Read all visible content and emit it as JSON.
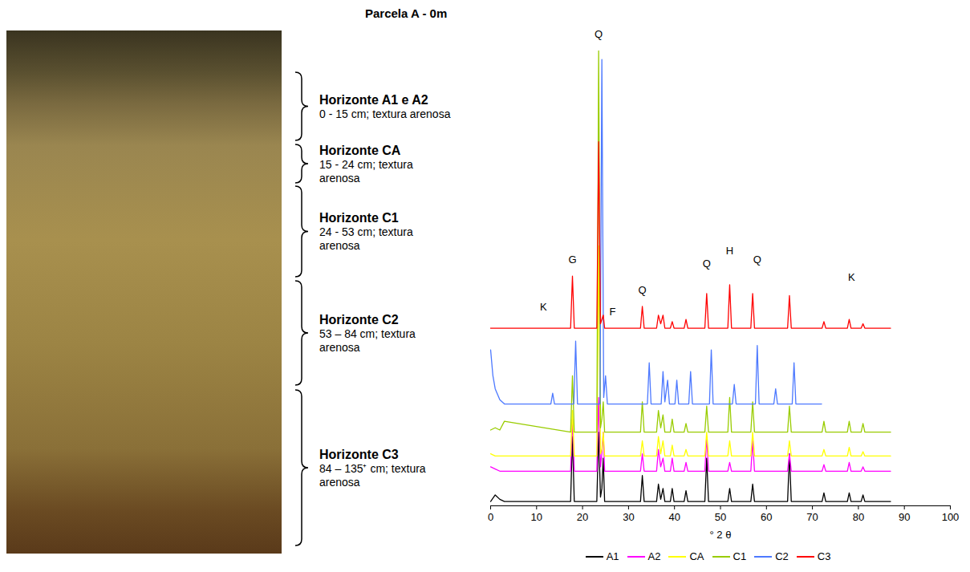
{
  "title": "Parcela A - 0m",
  "horizons": [
    {
      "name": "Horizonte A1 e A2",
      "depth": "0 - 15 cm; textura arenosa"
    },
    {
      "name": "Horizonte CA",
      "depth": "15 - 24 cm; textura arenosa"
    },
    {
      "name": "Horizonte C1",
      "depth": "24 - 53 cm; textura arenosa"
    },
    {
      "name": "Horizonte C2",
      "depth": "53 – 84 cm; textura arenosa"
    },
    {
      "name": "Horizonte C3",
      "depth": "84 – 135⁺ cm; textura arenosa"
    }
  ],
  "chart_data": {
    "type": "line",
    "x_label": "° 2 θ",
    "xlim": [
      0,
      100
    ],
    "xticks": [
      0,
      10,
      20,
      30,
      40,
      50,
      60,
      70,
      80,
      90,
      100
    ],
    "ylim": [
      0,
      112
    ],
    "tick_labels": "x",
    "legend": "bottom",
    "x": [
      0,
      1,
      2,
      3,
      17.4,
      17.8,
      18.2,
      23.1,
      23.5,
      23.9,
      24.2,
      24.5,
      24.8,
      32.6,
      33,
      33.4,
      36.1,
      36.5,
      37,
      37.5,
      37.9,
      39.1,
      39.5,
      39.9,
      42.1,
      42.5,
      42.9,
      46.6,
      47,
      47.4,
      51.6,
      52,
      52.4,
      56.6,
      57,
      57.4,
      64.6,
      65,
      65.4,
      72.1,
      72.5,
      72.9,
      77.6,
      78,
      78.4,
      80.6,
      81,
      81.4,
      87
    ],
    "series": [
      {
        "name": "A1",
        "color": "#000000",
        "values": [
          1,
          2.5,
          1.5,
          1,
          1,
          16,
          1,
          1,
          17,
          2,
          4,
          11,
          1,
          1,
          7,
          1,
          1,
          5,
          1.5,
          4,
          1,
          1,
          4,
          1,
          1,
          3.5,
          1,
          1,
          11,
          1,
          1,
          4,
          1,
          1,
          5,
          1,
          1,
          12,
          1,
          1,
          3,
          1,
          1,
          3,
          1,
          1,
          2.5,
          1,
          1
        ]
      },
      {
        "name": "A2",
        "color": "#ff00ff",
        "values": [
          9,
          8.5,
          8,
          8,
          8,
          20,
          8,
          8,
          25,
          9,
          12,
          17,
          8,
          8,
          12,
          8,
          8,
          13,
          9,
          11,
          8,
          8,
          11,
          8,
          8,
          10,
          8,
          8,
          16,
          8,
          8,
          10,
          8,
          8,
          15,
          8,
          8,
          12,
          8,
          8,
          9.5,
          8,
          8,
          10,
          8,
          8,
          9,
          8,
          8
        ]
      },
      {
        "name": "CA",
        "color": "#ffff00",
        "values": [
          12,
          11.5,
          11.5,
          11.5,
          11.5,
          22,
          11.5,
          11.5,
          60,
          12,
          13,
          17,
          11.5,
          11.5,
          15,
          11.5,
          11.5,
          16,
          12,
          15,
          11.5,
          11.5,
          14,
          11.5,
          11.5,
          13,
          11.5,
          11.5,
          17,
          11.5,
          11.5,
          15,
          11.5,
          11.5,
          17,
          11.5,
          11.5,
          15,
          11.5,
          11.5,
          13,
          11.5,
          11.5,
          13.5,
          11.5,
          11.5,
          12.5,
          11.5,
          11.5
        ]
      },
      {
        "name": "C1",
        "color": "#99cc00",
        "values": [
          17.5,
          18,
          17.5,
          19.5,
          17,
          30,
          17,
          17,
          105,
          18,
          20,
          24,
          17,
          17,
          24,
          17,
          17,
          22,
          18,
          21,
          17,
          17,
          20,
          17,
          17,
          19,
          17,
          17,
          23,
          17,
          17,
          25,
          17,
          17,
          24,
          17,
          17,
          23,
          17,
          17,
          19.5,
          17,
          17,
          19.5,
          17,
          17,
          19,
          17,
          17
        ]
      },
      {
        "name": "C2",
        "color": "#4d79ff",
        "x": [
          0,
          0.5,
          1,
          2,
          3,
          13.1,
          13.5,
          13.9,
          18.1,
          18.5,
          18.9,
          23.8,
          24.2,
          24.6,
          25,
          25.4,
          34.1,
          34.5,
          34.9,
          37.1,
          37.5,
          37.9,
          38.5,
          38.9,
          40.1,
          40.5,
          40.9,
          43.1,
          43.5,
          43.9,
          47.6,
          48,
          48.4,
          52.6,
          53,
          53.4,
          57.6,
          58,
          58.4,
          61.6,
          62,
          62.4,
          65.6,
          66,
          66.4,
          72
        ],
        "values": [
          36,
          30,
          27,
          24.5,
          23.5,
          23.5,
          26,
          23.5,
          23.5,
          38,
          23.5,
          23.5,
          103,
          25,
          30,
          23.5,
          23.5,
          33,
          23.5,
          23.5,
          31,
          24,
          29,
          23.5,
          23.5,
          29,
          23.5,
          23.5,
          31,
          23.5,
          23.5,
          36,
          23.5,
          23.5,
          28,
          23.5,
          23.5,
          37,
          23.5,
          23.5,
          27,
          23.5,
          23.5,
          33,
          23.5,
          23.5
        ]
      },
      {
        "name": "C3",
        "color": "#ff0000",
        "values": [
          41,
          41,
          41,
          41,
          41,
          53,
          41,
          41,
          84,
          42,
          43,
          44,
          41,
          41,
          46,
          41,
          41,
          44,
          42,
          44,
          41,
          41,
          42.5,
          41,
          41,
          43,
          41,
          41,
          49,
          41,
          41,
          51,
          41,
          41,
          49,
          41,
          41,
          48.5,
          41,
          41,
          42.5,
          41,
          41,
          43,
          41,
          41,
          42,
          41,
          41
        ]
      }
    ],
    "annotations": [
      {
        "text": "Q",
        "x": 23.5,
        "y": 108
      },
      {
        "text": "G",
        "x": 17.8,
        "y": 56
      },
      {
        "text": "K",
        "x": 11.5,
        "y": 45
      },
      {
        "text": "F",
        "x": 26.5,
        "y": 44
      },
      {
        "text": "Q",
        "x": 33,
        "y": 49
      },
      {
        "text": "Q",
        "x": 47,
        "y": 55
      },
      {
        "text": "H",
        "x": 52,
        "y": 58
      },
      {
        "text": "Q",
        "x": 58,
        "y": 56
      },
      {
        "text": "K",
        "x": 78.5,
        "y": 52
      }
    ]
  }
}
